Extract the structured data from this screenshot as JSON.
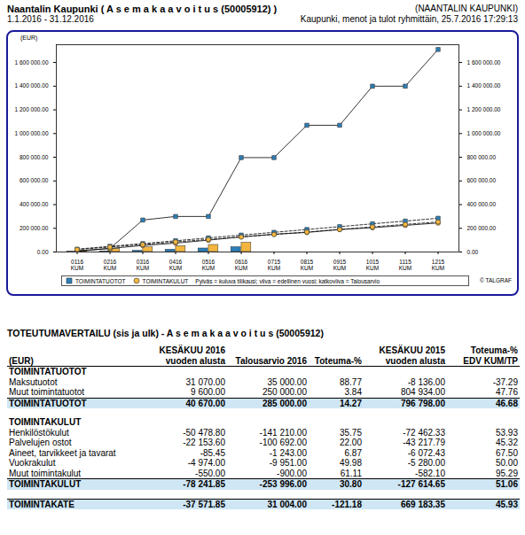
{
  "header": {
    "lines": [
      [
        "Naantalin Kaupunki ( A s e m a k a a v o i t u s (50005912) )",
        "(NAANTALIN KAUPUNKI)"
      ],
      [
        "1.1.2016 - 31.12.2016",
        "Kaupunki, menot ja tulot ryhmittäin, 25.7.2016 17:29:13"
      ]
    ]
  },
  "chart_data": {
    "type": "bar",
    "y_label": "(EUR)",
    "categories": [
      "0116\nKUM",
      "0216\nKUM",
      "0316\nKUM",
      "0416\nKUM",
      "0516\nKUM",
      "0616\nKUM",
      "0715\nKUM",
      "0815\nKUM",
      "0915\nKUM",
      "1015\nKUM",
      "1115\nKUM",
      "1215\nKUM"
    ],
    "ylim": [
      0,
      1750000
    ],
    "yticks": [
      {
        "value": 0,
        "label": "0.00"
      },
      {
        "value": 200000,
        "label": "200 000.00"
      },
      {
        "value": 400000,
        "label": "400 000.00"
      },
      {
        "value": 600000,
        "label": "600 000.00"
      },
      {
        "value": 800000,
        "label": "800 000.00"
      },
      {
        "value": 1000000,
        "label": "1 000 000.00"
      },
      {
        "value": 1200000,
        "label": "1 200 000.00"
      },
      {
        "value": 1400000,
        "label": "1 400 000.00"
      },
      {
        "value": 1600000,
        "label": "1 600 000.00"
      }
    ],
    "y2lim": [
      0,
      1750000
    ],
    "y2ticks": [
      {
        "value": 0,
        "label": "0.00"
      },
      {
        "value": 200000,
        "label": "200 000.00"
      },
      {
        "value": 400000,
        "label": "400 000.00"
      },
      {
        "value": 600000,
        "label": "600 000.00"
      },
      {
        "value": 800000,
        "label": "800 000.00"
      },
      {
        "value": 1000000,
        "label": "1 000 000.00"
      },
      {
        "value": 1200000,
        "label": "1 200 000.00"
      },
      {
        "value": 1400000,
        "label": "1 400 000.00"
      },
      {
        "value": 1600000,
        "label": "1 600 000.00"
      }
    ],
    "grid": false,
    "legend": "bottom",
    "annotations": [
      "Pylväs = kuluva tilikausi; viiva = edellinen vuosi; katkoviiva = Talousarvio",
      "© TALGRAF"
    ],
    "series": [
      {
        "name": "TOIMINTATUOTOT",
        "type": "bar",
        "color": "#2c7fb8",
        "marker": "square",
        "values": [
          2000,
          5000,
          10000,
          20000,
          30000,
          40670,
          null,
          null,
          null,
          null,
          null,
          null
        ]
      },
      {
        "name": "TOIMINTAKULUT",
        "type": "bar",
        "color": "#f2b640",
        "marker": "circle",
        "values": [
          8000,
          25000,
          40000,
          50000,
          60000,
          78242,
          null,
          null,
          null,
          null,
          null,
          null
        ]
      },
      {
        "name": "TOIMINTATUOTOT",
        "type": "line",
        "line_style": "solid",
        "marker": "square",
        "color": "#2c7fb8",
        "values": [
          5000,
          30000,
          270000,
          300000,
          300000,
          797000,
          797000,
          1070000,
          1070000,
          1400000,
          1400000,
          1710000
        ]
      },
      {
        "name": "TOIMINTAKULUT",
        "type": "line",
        "line_style": "solid",
        "marker": "circle",
        "color": "#f2b640",
        "values": [
          10000,
          30000,
          55000,
          75000,
          100000,
          128000,
          150000,
          165000,
          190000,
          205000,
          225000,
          245000
        ]
      },
      {
        "name": "TOIMINTATUOTOT",
        "type": "line",
        "line_style": "dashed",
        "marker": "square",
        "color": "#2c7fb8",
        "values": [
          24000,
          48000,
          71000,
          95000,
          119000,
          143000,
          166000,
          190000,
          214000,
          238000,
          261000,
          285000
        ]
      },
      {
        "name": "TOIMINTAKULUT",
        "type": "line",
        "line_style": "dashed",
        "marker": "circle",
        "color": "#f2b640",
        "values": [
          21000,
          42000,
          63000,
          85000,
          106000,
          127000,
          148000,
          169000,
          190000,
          212000,
          233000,
          254000
        ]
      }
    ]
  },
  "table": {
    "title": "TOTEUTUMAVERTAILU (sis ja ulk) - A s e m a k a a v o i t u s (50005912)",
    "columns": [
      "(EUR)",
      "KESÄKUU 2016\nvuoden alusta",
      "Talousarvio 2016",
      "Toteuma-%",
      "KESÄKUU 2015\nvuoden alusta",
      "Toteuma-%\nEDV KUM/TP"
    ],
    "sections": [
      {
        "heading": "TOIMINTATUOTOT",
        "rows": [
          [
            "Maksutuotot",
            "31 070.00",
            "35 000.00",
            "88.77",
            "-8 136.00",
            "-37.29"
          ],
          [
            "Muut toimintatuotot",
            "9 600.00",
            "250 000.00",
            "3.84",
            "804 934.00",
            "47.76"
          ]
        ],
        "total": [
          "TOIMINTATUOTOT",
          "40 670.00",
          "285 000.00",
          "14.27",
          "796 798.00",
          "46.68"
        ]
      },
      {
        "heading": "TOIMINTAKULUT",
        "rows": [
          [
            "Henkilöstökulut",
            "-50 478.80",
            "-141 210.00",
            "35.75",
            "-72 462.33",
            "53.93"
          ],
          [
            "Palvelujen ostot",
            "-22 153.60",
            "-100 692.00",
            "22.00",
            "-43 217.79",
            "45.32"
          ],
          [
            "Aineet, tarvikkeet ja tavarat",
            "-85.45",
            "-1 243.00",
            "6.87",
            "-6 072.43",
            "67.50"
          ],
          [
            "Vuokrakulut",
            "-4 974.00",
            "-9 951.00",
            "49.98",
            "-5 280.00",
            "50.00"
          ],
          [
            "Muut toimintakulut",
            "-550.00",
            "-900.00",
            "61.11",
            "-582.10",
            "95.29"
          ]
        ],
        "total": [
          "TOIMINTAKULUT",
          "-78 241.85",
          "-253 996.00",
          "30.80",
          "-127 614.65",
          "51.06"
        ]
      }
    ],
    "result": [
      "TOIMINTAKATE",
      "-37 571.85",
      "31 004.00",
      "-121.18",
      "669 183.35",
      "45.93"
    ]
  }
}
